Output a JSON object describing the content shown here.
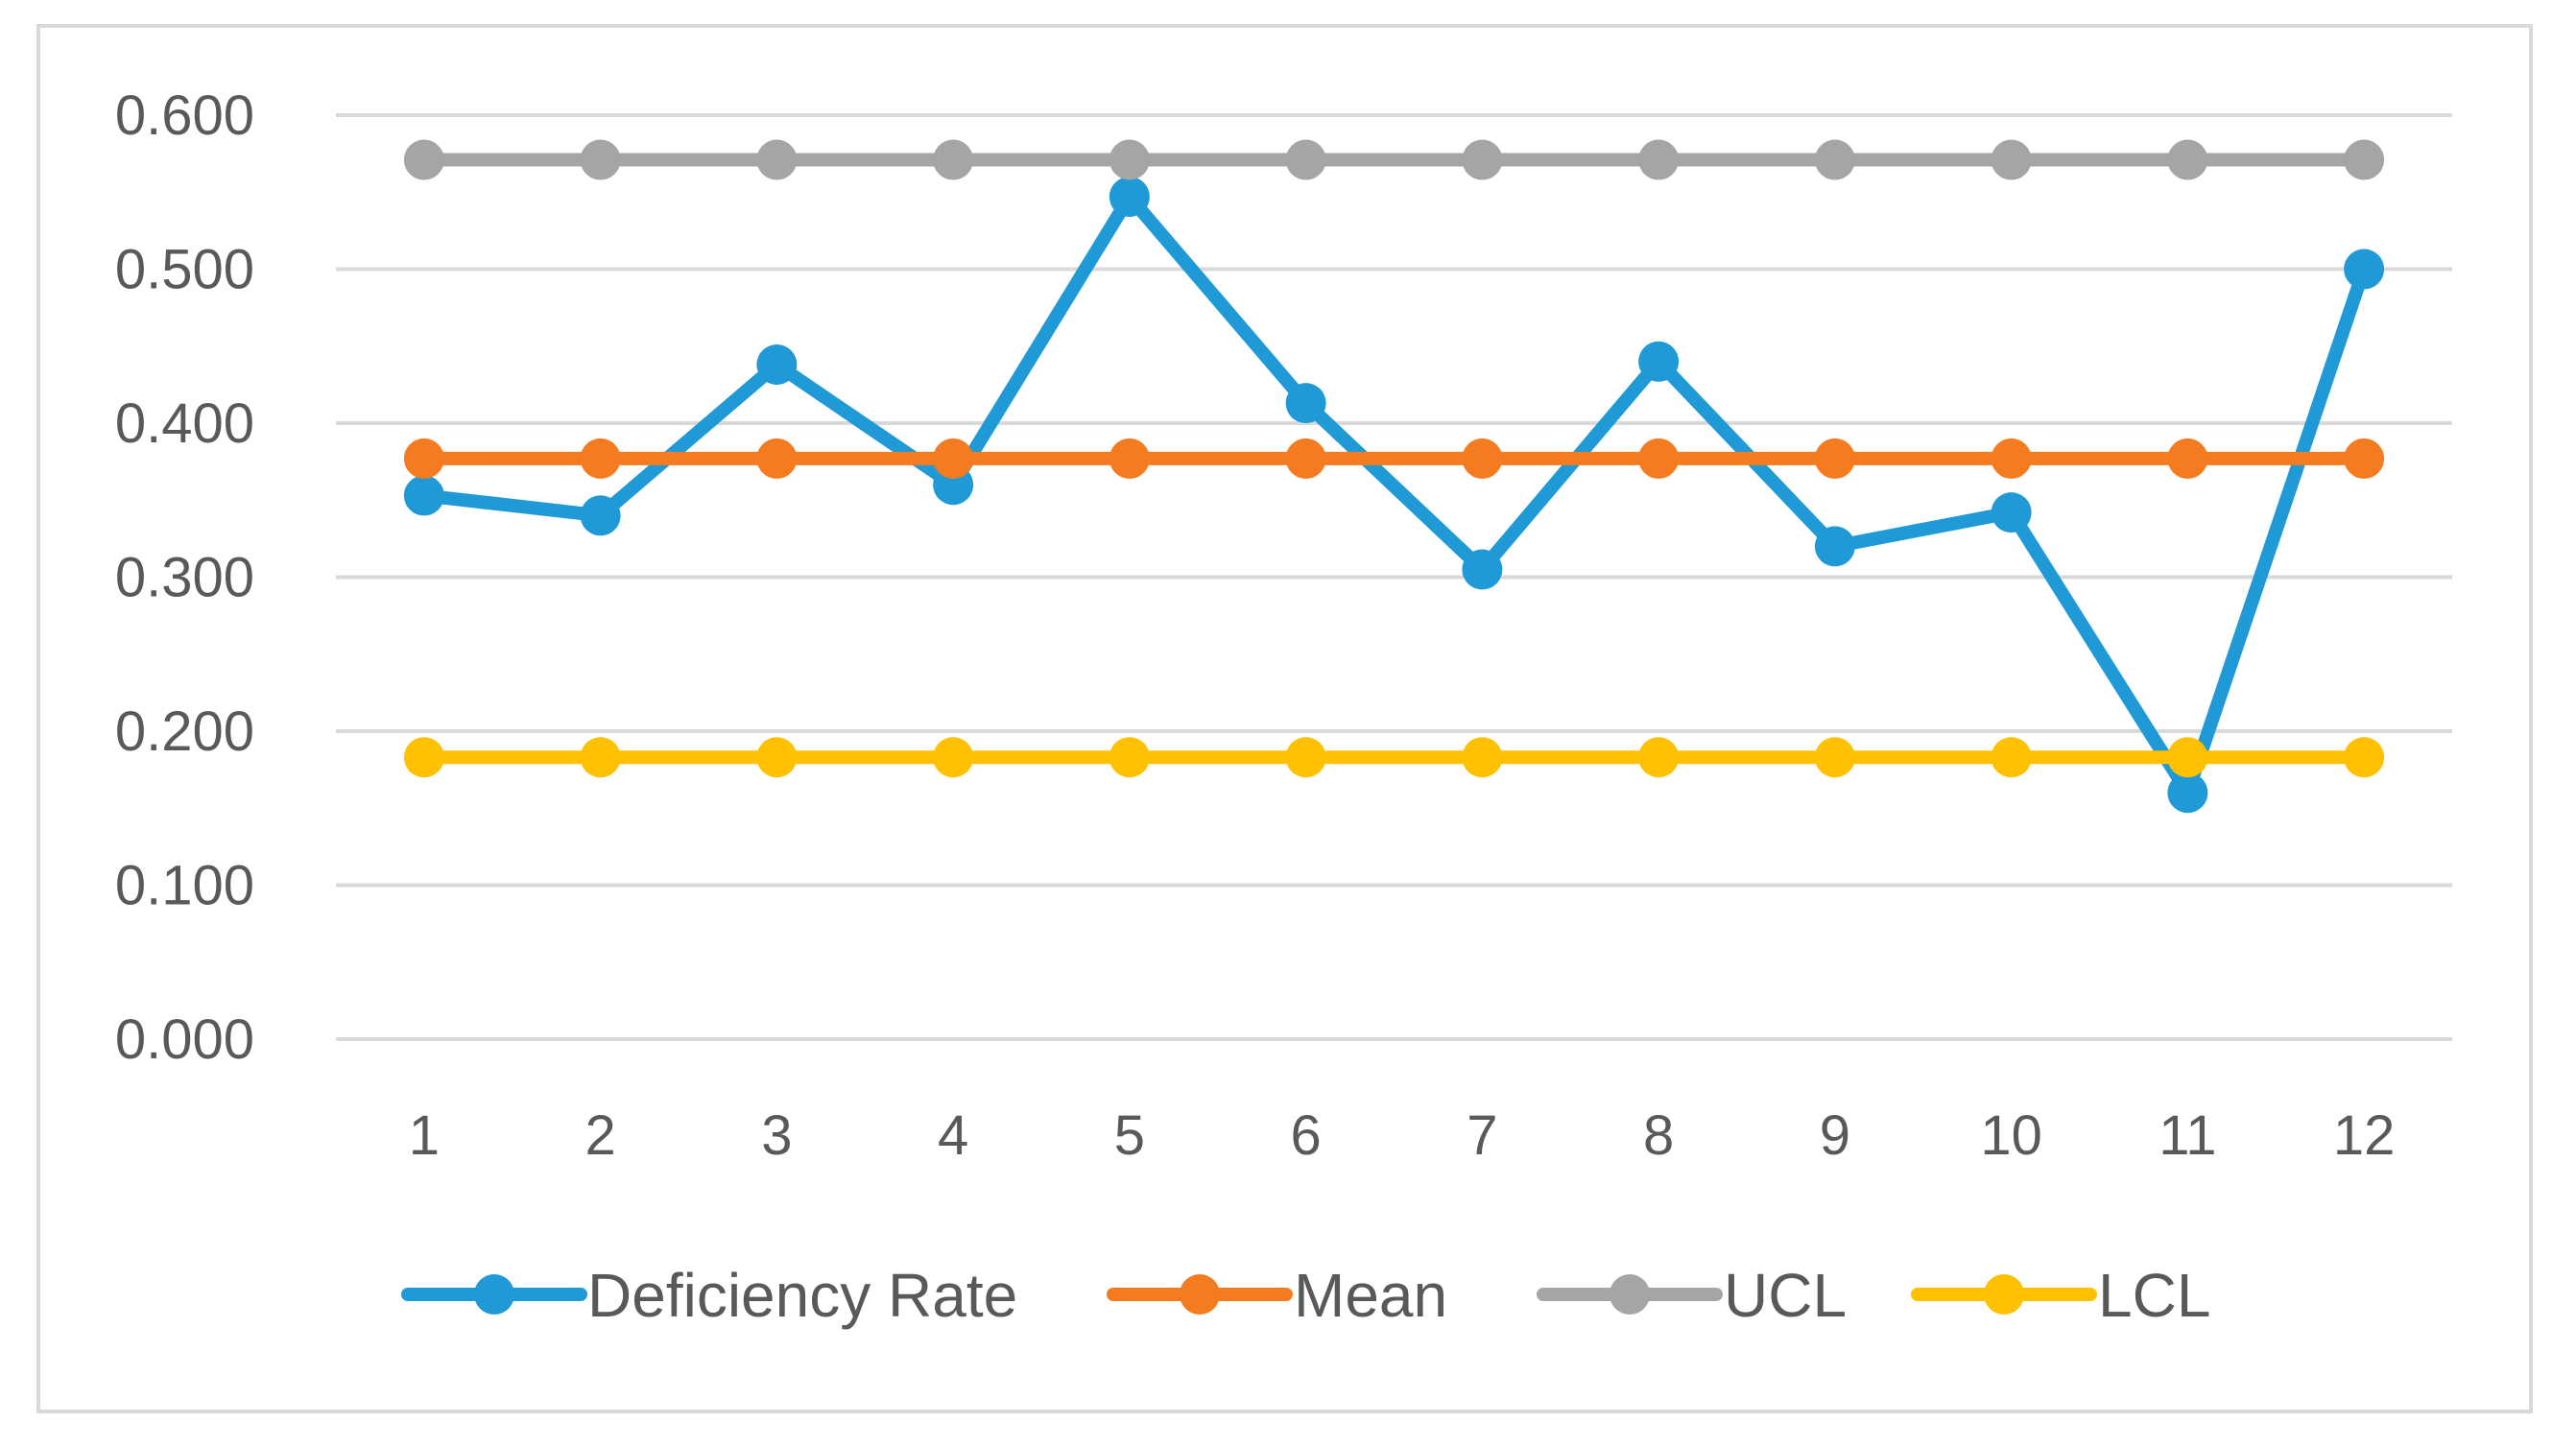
{
  "chart_data": {
    "type": "line",
    "title": "",
    "xlabel": "",
    "ylabel": "",
    "categories": [
      "1",
      "2",
      "3",
      "4",
      "5",
      "6",
      "7",
      "8",
      "9",
      "10",
      "11",
      "12"
    ],
    "ylim": [
      0,
      0.6
    ],
    "yticks": [
      0,
      0.1,
      0.2,
      0.3,
      0.4,
      0.5,
      0.6
    ],
    "ytick_labels": [
      "0.000",
      "0.100",
      "0.200",
      "0.300",
      "0.400",
      "0.500",
      "0.600"
    ],
    "grid": true,
    "legend_position": "bottom",
    "series": [
      {
        "name": "Deficiency Rate",
        "color": "#1f9ad6",
        "values": [
          0.353,
          0.34,
          0.438,
          0.36,
          0.547,
          0.413,
          0.305,
          0.44,
          0.32,
          0.342,
          0.16,
          0.5
        ]
      },
      {
        "name": "Mean",
        "color": "#f47b20",
        "values": [
          0.377,
          0.377,
          0.377,
          0.377,
          0.377,
          0.377,
          0.377,
          0.377,
          0.377,
          0.377,
          0.377,
          0.377
        ]
      },
      {
        "name": "UCL",
        "color": "#a5a5a5",
        "values": [
          0.571,
          0.571,
          0.571,
          0.571,
          0.571,
          0.571,
          0.571,
          0.571,
          0.571,
          0.571,
          0.571,
          0.571
        ]
      },
      {
        "name": "LCL",
        "color": "#ffc000",
        "values": [
          0.183,
          0.183,
          0.183,
          0.183,
          0.183,
          0.183,
          0.183,
          0.183,
          0.183,
          0.183,
          0.183,
          0.183
        ]
      }
    ]
  }
}
